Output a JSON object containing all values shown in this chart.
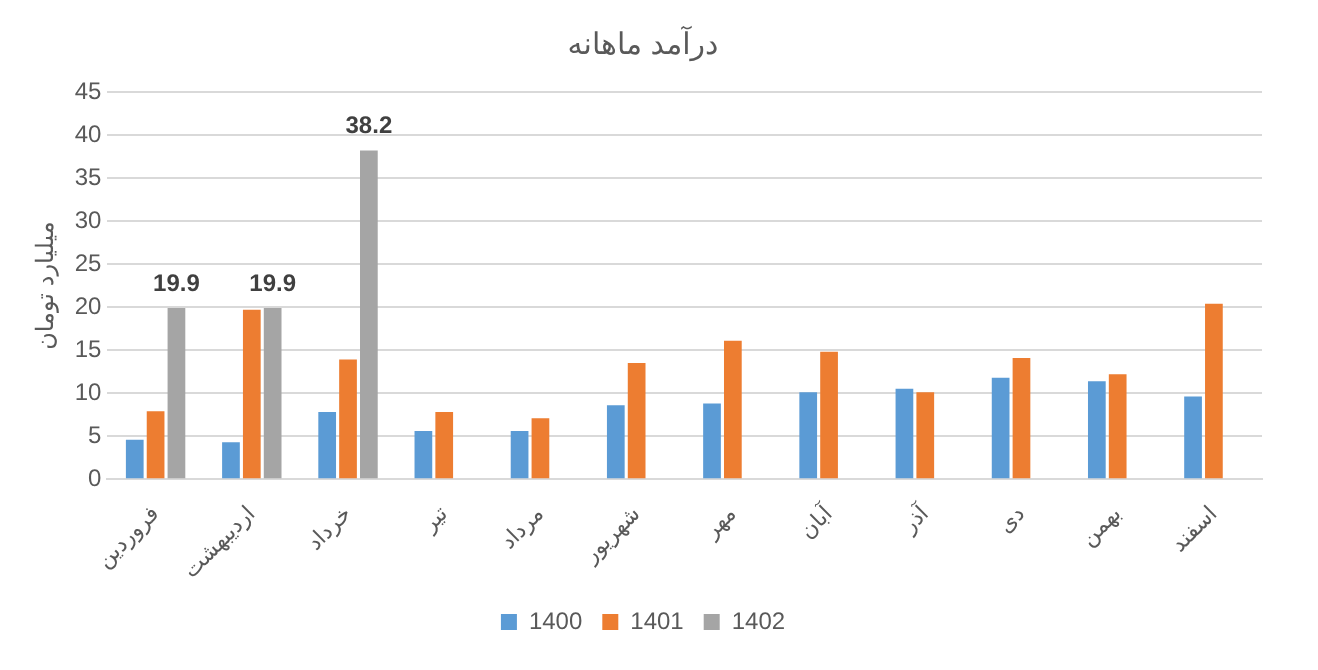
{
  "chart_data": {
    "type": "bar",
    "title": "درآمد ماهانه",
    "ylabel": "میلیارد تومان",
    "categories": [
      "فروردین",
      "اردیبهشت",
      "خرداد",
      "تیر",
      "مرداد",
      "شهریور",
      "مهر",
      "آبان",
      "آذر",
      "دی",
      "بهمن",
      "اسفند"
    ],
    "series": [
      {
        "name": "1400",
        "color": "#5b9bd5",
        "values": [
          4.6,
          4.3,
          7.8,
          5.6,
          5.6,
          8.6,
          8.8,
          10.1,
          10.5,
          11.8,
          11.4,
          9.6
        ]
      },
      {
        "name": "1401",
        "color": "#ed7d31",
        "values": [
          7.9,
          19.7,
          13.9,
          7.8,
          7.1,
          13.5,
          16.1,
          14.8,
          10.1,
          14.1,
          12.2,
          20.4
        ]
      },
      {
        "name": "1402",
        "color": "#a5a5a5",
        "values": [
          19.9,
          19.9,
          38.2,
          null,
          null,
          null,
          null,
          null,
          null,
          null,
          null,
          null
        ],
        "value_labels": [
          "19.9",
          "19.9",
          "38.2",
          null,
          null,
          null,
          null,
          null,
          null,
          null,
          null,
          null
        ]
      }
    ],
    "ylim": [
      0,
      45
    ],
    "yticks": [
      0,
      5,
      10,
      15,
      20,
      25,
      30,
      35,
      40,
      45
    ],
    "grid": "y",
    "legend": "bottom"
  }
}
